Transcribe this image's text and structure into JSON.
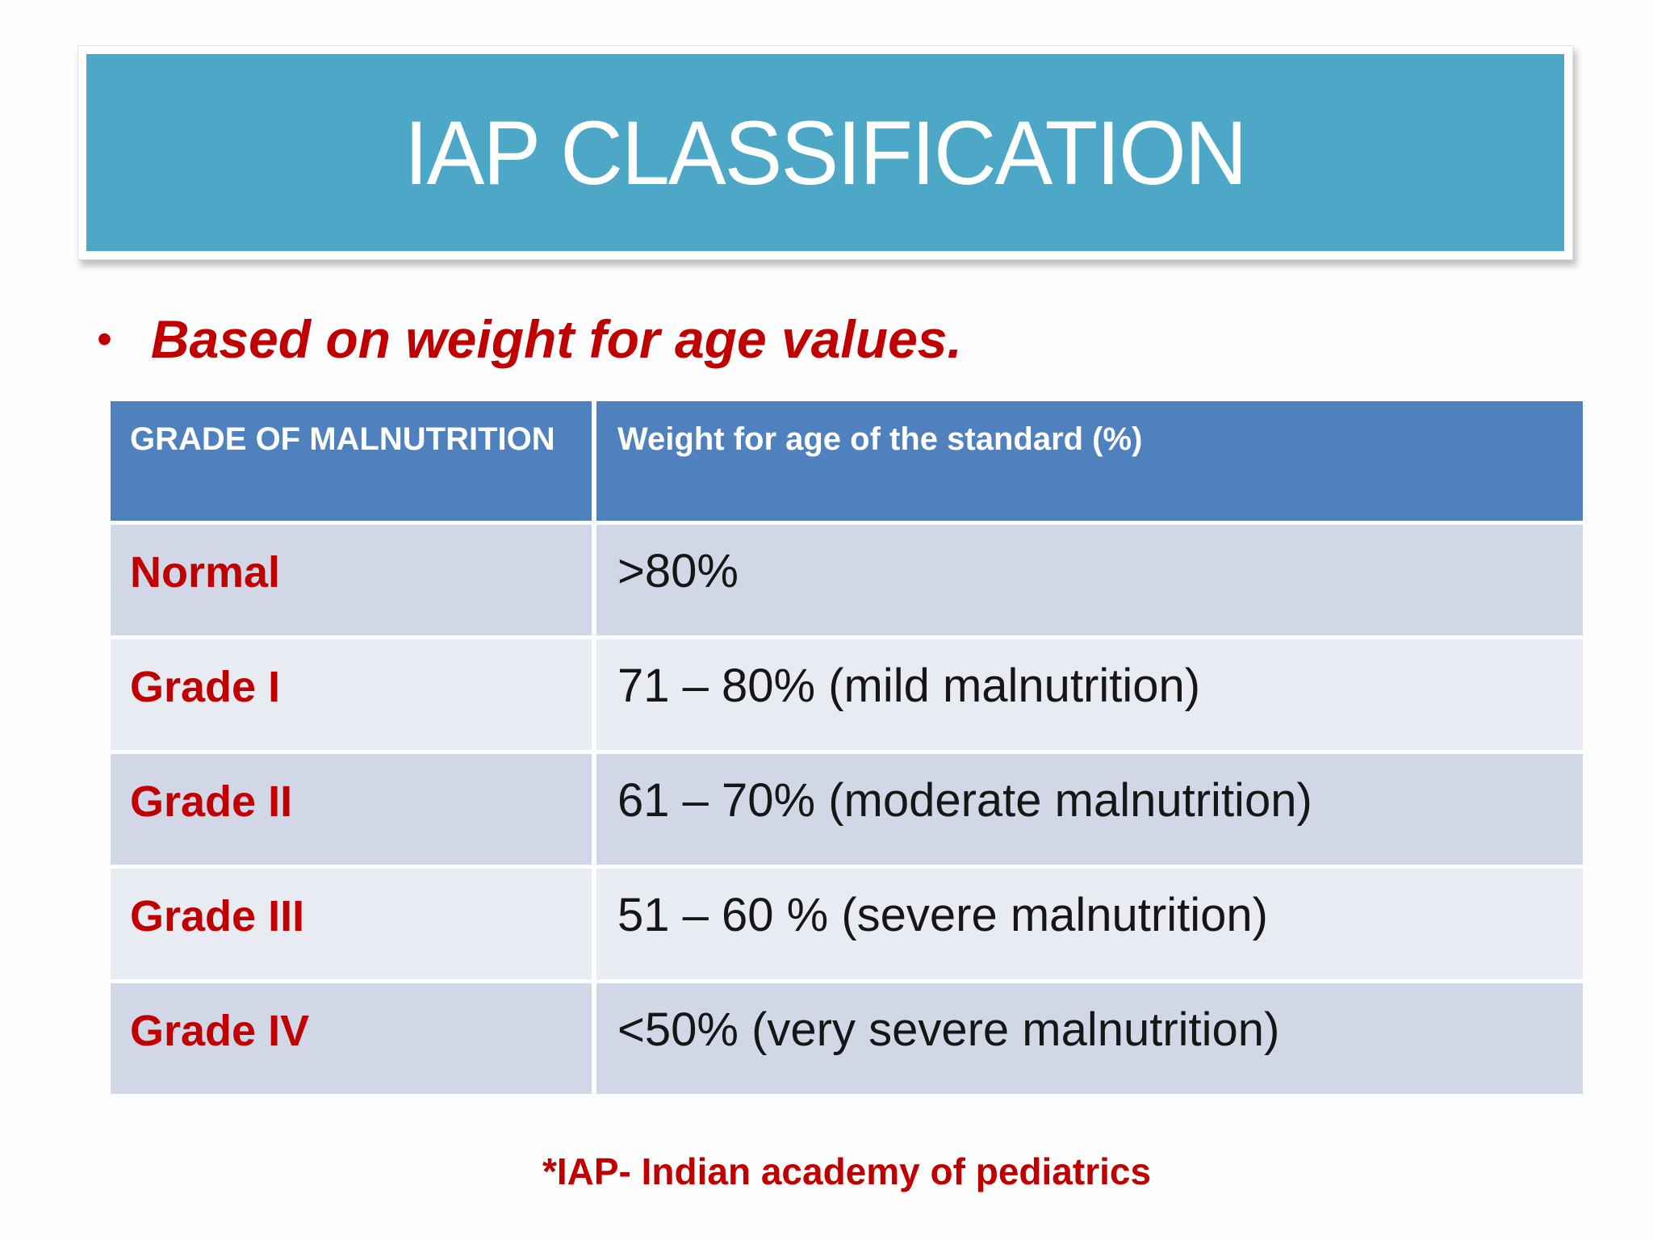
{
  "slide": {
    "title": "IAP CLASSIFICATION",
    "bullet_glyph": "•",
    "bullet_text": "Based on weight for age values.",
    "footnote": "*IAP- Indian academy of pediatrics"
  },
  "table": {
    "columns": [
      "GRADE OF MALNUTRITION",
      "Weight for age of the standard (%)"
    ],
    "rows": [
      {
        "grade": "Normal",
        "value": ">80%"
      },
      {
        "grade": "Grade I",
        "value": "71 – 80% (mild malnutrition)"
      },
      {
        "grade": "Grade II",
        "value": "61 – 70% (moderate malnutrition)"
      },
      {
        "grade": "Grade III",
        "value": "51 – 60 % (severe malnutrition)"
      },
      {
        "grade": "Grade IV",
        "value": "<50% (very severe malnutrition)"
      }
    ]
  },
  "colors": {
    "banner_teal": "#4CA8C6",
    "table_header_blue": "#4E81BE",
    "row_odd": "#D2D7E8",
    "row_even": "#E9EBF2",
    "accent_red": "#C00000",
    "text_dark": "#161616"
  }
}
